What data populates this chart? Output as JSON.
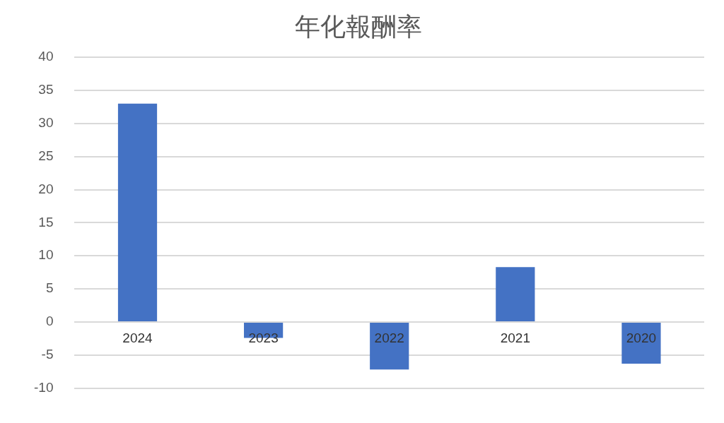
{
  "chart_data": {
    "type": "bar",
    "title": "年化報酬率",
    "categories": [
      "2024",
      "2023",
      "2022",
      "2021",
      "2020"
    ],
    "values": [
      33,
      -2.4,
      -7.2,
      8.3,
      -6.3
    ],
    "color": "#4472c4",
    "ylim": [
      -10,
      40
    ],
    "yticks": [
      -10,
      -5,
      0,
      5,
      10,
      15,
      20,
      25,
      30,
      35,
      40
    ],
    "grid": "y"
  }
}
